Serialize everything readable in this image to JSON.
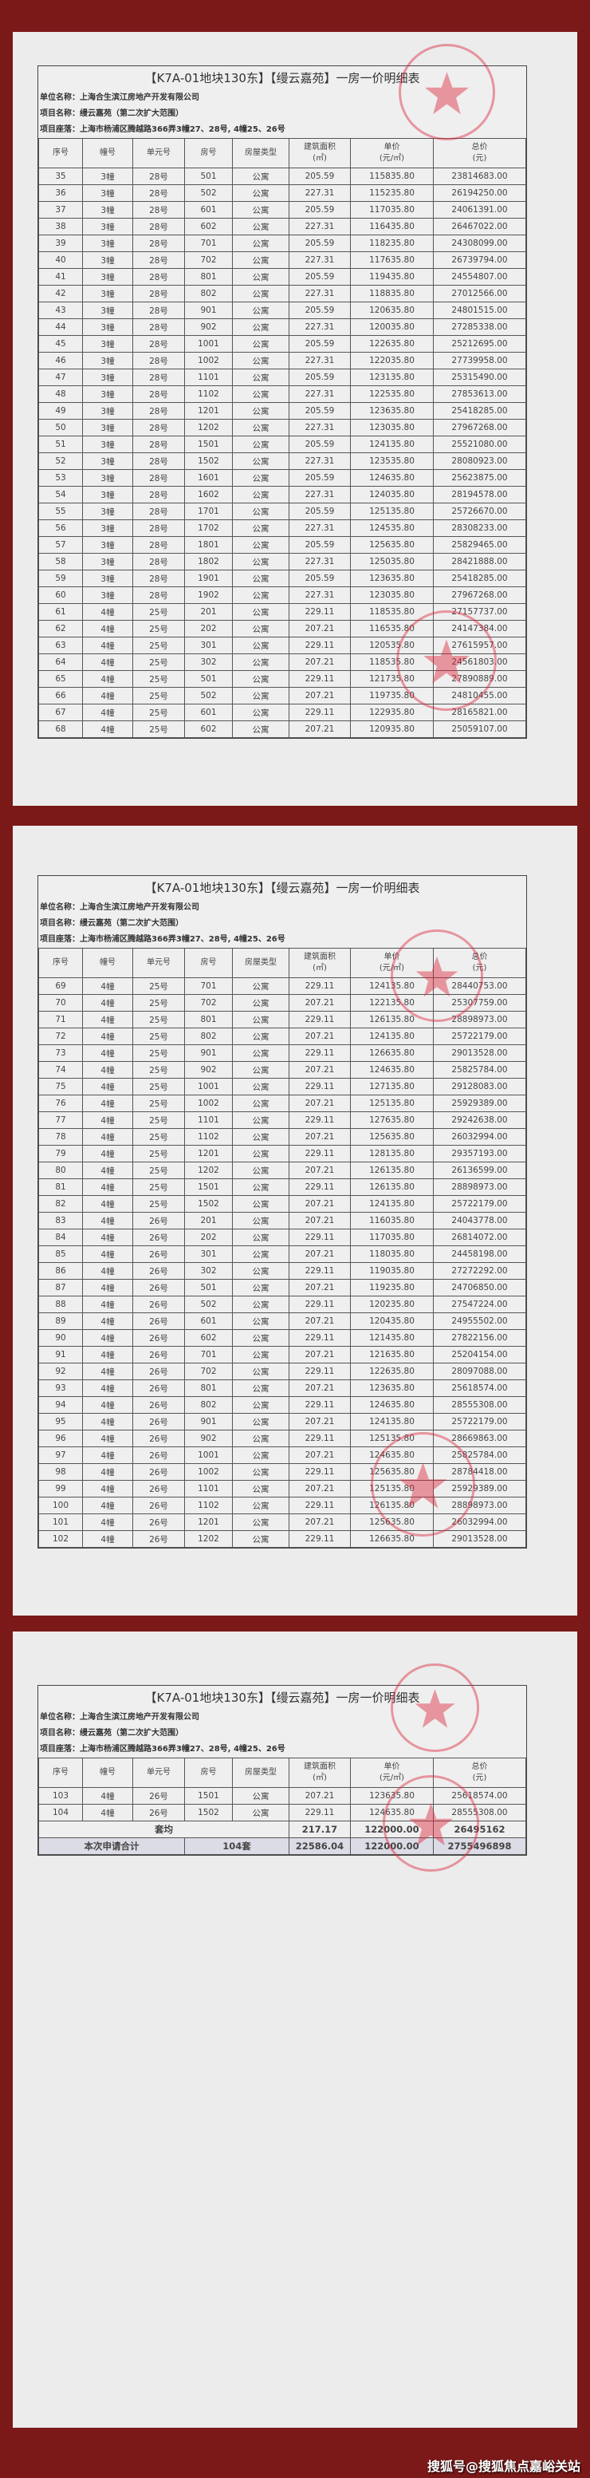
{
  "doc": {
    "title": "【K7A-01地块130东】【缦云嘉苑】一房一价明细表",
    "company": "单位名称：上海合生滨江房地产开发有限公司",
    "project": "项目名称：缦云嘉苑（第二次扩大范围）",
    "location": "项目座落：上海市杨浦区腾越路366弄3幢27、28号, 4幢25、26号",
    "headers": [
      "序号",
      "幢号",
      "单元号",
      "房号",
      "房屋类型",
      "建筑面积\n(㎡)",
      "单价\n(元/㎡)",
      "总价\n(元)"
    ]
  },
  "pages": [
    {
      "rows": [
        [
          "35",
          "3幢",
          "28号",
          "501",
          "公寓",
          "205.59",
          "115835.80",
          "23814683.00"
        ],
        [
          "36",
          "3幢",
          "28号",
          "502",
          "公寓",
          "227.31",
          "115235.80",
          "26194250.00"
        ],
        [
          "37",
          "3幢",
          "28号",
          "601",
          "公寓",
          "205.59",
          "117035.80",
          "24061391.00"
        ],
        [
          "38",
          "3幢",
          "28号",
          "602",
          "公寓",
          "227.31",
          "116435.80",
          "26467022.00"
        ],
        [
          "39",
          "3幢",
          "28号",
          "701",
          "公寓",
          "205.59",
          "118235.80",
          "24308099.00"
        ],
        [
          "40",
          "3幢",
          "28号",
          "702",
          "公寓",
          "227.31",
          "117635.80",
          "26739794.00"
        ],
        [
          "41",
          "3幢",
          "28号",
          "801",
          "公寓",
          "205.59",
          "119435.80",
          "24554807.00"
        ],
        [
          "42",
          "3幢",
          "28号",
          "802",
          "公寓",
          "227.31",
          "118835.80",
          "27012566.00"
        ],
        [
          "43",
          "3幢",
          "28号",
          "901",
          "公寓",
          "205.59",
          "120635.80",
          "24801515.00"
        ],
        [
          "44",
          "3幢",
          "28号",
          "902",
          "公寓",
          "227.31",
          "120035.80",
          "27285338.00"
        ],
        [
          "45",
          "3幢",
          "28号",
          "1001",
          "公寓",
          "205.59",
          "122635.80",
          "25212695.00"
        ],
        [
          "46",
          "3幢",
          "28号",
          "1002",
          "公寓",
          "227.31",
          "122035.80",
          "27739958.00"
        ],
        [
          "47",
          "3幢",
          "28号",
          "1101",
          "公寓",
          "205.59",
          "123135.80",
          "25315490.00"
        ],
        [
          "48",
          "3幢",
          "28号",
          "1102",
          "公寓",
          "227.31",
          "122535.80",
          "27853613.00"
        ],
        [
          "49",
          "3幢",
          "28号",
          "1201",
          "公寓",
          "205.59",
          "123635.80",
          "25418285.00"
        ],
        [
          "50",
          "3幢",
          "28号",
          "1202",
          "公寓",
          "227.31",
          "123035.80",
          "27967268.00"
        ],
        [
          "51",
          "3幢",
          "28号",
          "1501",
          "公寓",
          "205.59",
          "124135.80",
          "25521080.00"
        ],
        [
          "52",
          "3幢",
          "28号",
          "1502",
          "公寓",
          "227.31",
          "123535.80",
          "28080923.00"
        ],
        [
          "53",
          "3幢",
          "28号",
          "1601",
          "公寓",
          "205.59",
          "124635.80",
          "25623875.00"
        ],
        [
          "54",
          "3幢",
          "28号",
          "1602",
          "公寓",
          "227.31",
          "124035.80",
          "28194578.00"
        ],
        [
          "55",
          "3幢",
          "28号",
          "1701",
          "公寓",
          "205.59",
          "125135.80",
          "25726670.00"
        ],
        [
          "56",
          "3幢",
          "28号",
          "1702",
          "公寓",
          "227.31",
          "124535.80",
          "28308233.00"
        ],
        [
          "57",
          "3幢",
          "28号",
          "1801",
          "公寓",
          "205.59",
          "125635.80",
          "25829465.00"
        ],
        [
          "58",
          "3幢",
          "28号",
          "1802",
          "公寓",
          "227.31",
          "125035.80",
          "28421888.00"
        ],
        [
          "59",
          "3幢",
          "28号",
          "1901",
          "公寓",
          "205.59",
          "123635.80",
          "25418285.00"
        ],
        [
          "60",
          "3幢",
          "28号",
          "1902",
          "公寓",
          "227.31",
          "123035.80",
          "27967268.00"
        ],
        [
          "61",
          "4幢",
          "25号",
          "201",
          "公寓",
          "229.11",
          "118535.80",
          "27157737.00"
        ],
        [
          "62",
          "4幢",
          "25号",
          "202",
          "公寓",
          "207.21",
          "116535.80",
          "24147384.00"
        ],
        [
          "63",
          "4幢",
          "25号",
          "301",
          "公寓",
          "229.11",
          "120535.80",
          "27615957.00"
        ],
        [
          "64",
          "4幢",
          "25号",
          "302",
          "公寓",
          "207.21",
          "118535.80",
          "24561803.00"
        ],
        [
          "65",
          "4幢",
          "25号",
          "501",
          "公寓",
          "229.11",
          "121735.80",
          "27890889.00"
        ],
        [
          "66",
          "4幢",
          "25号",
          "502",
          "公寓",
          "207.21",
          "119735.80",
          "24810455.00"
        ],
        [
          "67",
          "4幢",
          "25号",
          "601",
          "公寓",
          "229.11",
          "122935.80",
          "28165821.00"
        ],
        [
          "68",
          "4幢",
          "25号",
          "602",
          "公寓",
          "207.21",
          "120935.80",
          "25059107.00"
        ]
      ]
    },
    {
      "rows": [
        [
          "69",
          "4幢",
          "25号",
          "701",
          "公寓",
          "229.11",
          "124135.80",
          "28440753.00"
        ],
        [
          "70",
          "4幢",
          "25号",
          "702",
          "公寓",
          "207.21",
          "122135.80",
          "25307759.00"
        ],
        [
          "71",
          "4幢",
          "25号",
          "801",
          "公寓",
          "229.11",
          "126135.80",
          "28898973.00"
        ],
        [
          "72",
          "4幢",
          "25号",
          "802",
          "公寓",
          "207.21",
          "124135.80",
          "25722179.00"
        ],
        [
          "73",
          "4幢",
          "25号",
          "901",
          "公寓",
          "229.11",
          "126635.80",
          "29013528.00"
        ],
        [
          "74",
          "4幢",
          "25号",
          "902",
          "公寓",
          "207.21",
          "124635.80",
          "25825784.00"
        ],
        [
          "75",
          "4幢",
          "25号",
          "1001",
          "公寓",
          "229.11",
          "127135.80",
          "29128083.00"
        ],
        [
          "76",
          "4幢",
          "25号",
          "1002",
          "公寓",
          "207.21",
          "125135.80",
          "25929389.00"
        ],
        [
          "77",
          "4幢",
          "25号",
          "1101",
          "公寓",
          "229.11",
          "127635.80",
          "29242638.00"
        ],
        [
          "78",
          "4幢",
          "25号",
          "1102",
          "公寓",
          "207.21",
          "125635.80",
          "26032994.00"
        ],
        [
          "79",
          "4幢",
          "25号",
          "1201",
          "公寓",
          "229.11",
          "128135.80",
          "29357193.00"
        ],
        [
          "80",
          "4幢",
          "25号",
          "1202",
          "公寓",
          "207.21",
          "126135.80",
          "26136599.00"
        ],
        [
          "81",
          "4幢",
          "25号",
          "1501",
          "公寓",
          "229.11",
          "126135.80",
          "28898973.00"
        ],
        [
          "82",
          "4幢",
          "25号",
          "1502",
          "公寓",
          "207.21",
          "124135.80",
          "25722179.00"
        ],
        [
          "83",
          "4幢",
          "26号",
          "201",
          "公寓",
          "207.21",
          "116035.80",
          "24043778.00"
        ],
        [
          "84",
          "4幢",
          "26号",
          "202",
          "公寓",
          "229.11",
          "117035.80",
          "26814072.00"
        ],
        [
          "85",
          "4幢",
          "26号",
          "301",
          "公寓",
          "207.21",
          "118035.80",
          "24458198.00"
        ],
        [
          "86",
          "4幢",
          "26号",
          "302",
          "公寓",
          "229.11",
          "119035.80",
          "27272292.00"
        ],
        [
          "87",
          "4幢",
          "26号",
          "501",
          "公寓",
          "207.21",
          "119235.80",
          "24706850.00"
        ],
        [
          "88",
          "4幢",
          "26号",
          "502",
          "公寓",
          "229.11",
          "120235.80",
          "27547224.00"
        ],
        [
          "89",
          "4幢",
          "26号",
          "601",
          "公寓",
          "207.21",
          "120435.80",
          "24955502.00"
        ],
        [
          "90",
          "4幢",
          "26号",
          "602",
          "公寓",
          "229.11",
          "121435.80",
          "27822156.00"
        ],
        [
          "91",
          "4幢",
          "26号",
          "701",
          "公寓",
          "207.21",
          "121635.80",
          "25204154.00"
        ],
        [
          "92",
          "4幢",
          "26号",
          "702",
          "公寓",
          "229.11",
          "122635.80",
          "28097088.00"
        ],
        [
          "93",
          "4幢",
          "26号",
          "801",
          "公寓",
          "207.21",
          "123635.80",
          "25618574.00"
        ],
        [
          "94",
          "4幢",
          "26号",
          "802",
          "公寓",
          "229.11",
          "124635.80",
          "28555308.00"
        ],
        [
          "95",
          "4幢",
          "26号",
          "901",
          "公寓",
          "207.21",
          "124135.80",
          "25722179.00"
        ],
        [
          "96",
          "4幢",
          "26号",
          "902",
          "公寓",
          "229.11",
          "125135.80",
          "28669863.00"
        ],
        [
          "97",
          "4幢",
          "26号",
          "1001",
          "公寓",
          "207.21",
          "124635.80",
          "25825784.00"
        ],
        [
          "98",
          "4幢",
          "26号",
          "1002",
          "公寓",
          "229.11",
          "125635.80",
          "28784418.00"
        ],
        [
          "99",
          "4幢",
          "26号",
          "1101",
          "公寓",
          "207.21",
          "125135.80",
          "25929389.00"
        ],
        [
          "100",
          "4幢",
          "26号",
          "1102",
          "公寓",
          "229.11",
          "126135.80",
          "28898973.00"
        ],
        [
          "101",
          "4幢",
          "26号",
          "1201",
          "公寓",
          "207.21",
          "125635.80",
          "26032994.00"
        ],
        [
          "102",
          "4幢",
          "26号",
          "1202",
          "公寓",
          "229.11",
          "126635.80",
          "29013528.00"
        ]
      ]
    },
    {
      "rows": [
        [
          "103",
          "4幢",
          "26号",
          "1501",
          "公寓",
          "207.21",
          "123635.80",
          "25618574.00"
        ],
        [
          "104",
          "4幢",
          "26号",
          "1502",
          "公寓",
          "229.11",
          "124635.80",
          "28555308.00"
        ]
      ],
      "average": {
        "label": "套均",
        "area": "217.17",
        "unit_price": "122000.00",
        "total": "26495162"
      },
      "grand_total": {
        "label": "本次申请合计",
        "count": "104套",
        "area": "22586.04",
        "unit_price": "122000.00",
        "total": "2755496898"
      }
    }
  ],
  "colors": {
    "background": "#7b1818",
    "stamp": "#dc283c"
  },
  "watermark": "搜狐号@搜狐焦点嘉峪关站"
}
